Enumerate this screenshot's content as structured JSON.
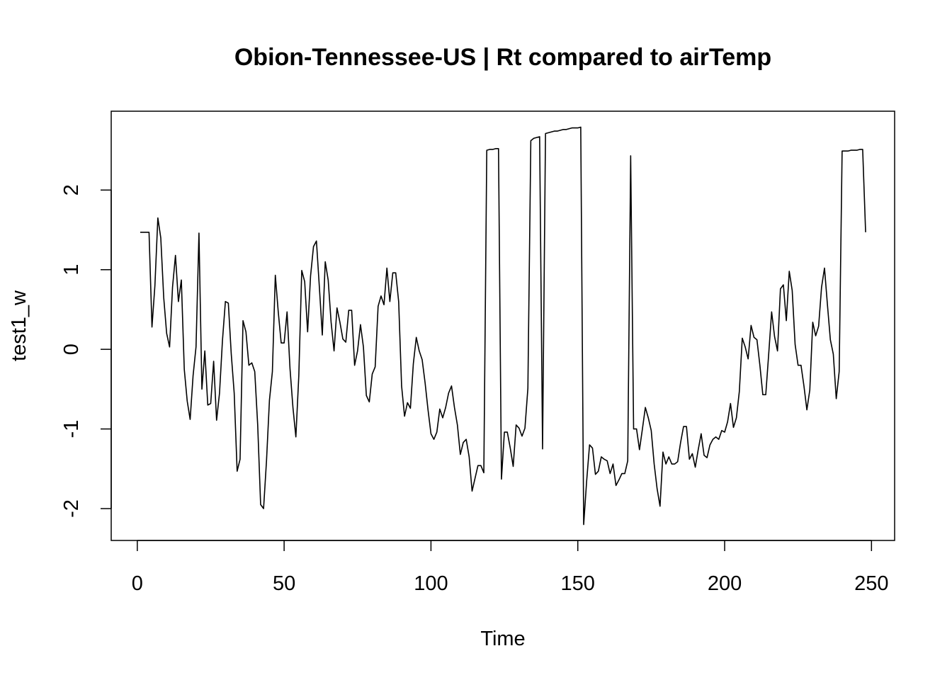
{
  "chart_data": {
    "type": "line",
    "title": "Obion-Tennessee-US | Rt compared to airTemp",
    "x_label": "Time",
    "y_label": "test1_w",
    "xlim": [
      -8.88,
      257.88
    ],
    "ylim": [
      -2.4,
      2.99
    ],
    "xticks": [
      0,
      50,
      100,
      150,
      200,
      250
    ],
    "yticks": [
      -2,
      -1,
      0,
      1,
      2
    ],
    "x": [
      1,
      2,
      3,
      4,
      5,
      6,
      7,
      8,
      9,
      10,
      11,
      12,
      13,
      14,
      15,
      16,
      17,
      18,
      19,
      20,
      21,
      22,
      23,
      24,
      25,
      26,
      27,
      28,
      29,
      30,
      31,
      32,
      33,
      34,
      35,
      36,
      37,
      38,
      39,
      40,
      41,
      42,
      43,
      44,
      45,
      46,
      47,
      48,
      49,
      50,
      51,
      52,
      53,
      54,
      55,
      56,
      57,
      58,
      59,
      60,
      61,
      62,
      63,
      64,
      65,
      66,
      67,
      68,
      69,
      70,
      71,
      72,
      73,
      74,
      75,
      76,
      77,
      78,
      79,
      80,
      81,
      82,
      83,
      84,
      85,
      86,
      87,
      88,
      89,
      90,
      91,
      92,
      93,
      94,
      95,
      96,
      97,
      98,
      99,
      100,
      101,
      102,
      103,
      104,
      105,
      106,
      107,
      108,
      109,
      110,
      111,
      112,
      113,
      114,
      115,
      116,
      117,
      118,
      119,
      120,
      121,
      122,
      123,
      124,
      125,
      126,
      127,
      128,
      129,
      130,
      131,
      132,
      133,
      134,
      135,
      136,
      137,
      138,
      139,
      140,
      141,
      142,
      143,
      144,
      145,
      146,
      147,
      148,
      149,
      150,
      151,
      152,
      153,
      154,
      155,
      156,
      157,
      158,
      159,
      160,
      161,
      162,
      163,
      164,
      165,
      166,
      167,
      168,
      169,
      170,
      171,
      172,
      173,
      174,
      175,
      176,
      177,
      178,
      179,
      180,
      181,
      182,
      183,
      184,
      185,
      186,
      187,
      188,
      189,
      190,
      191,
      192,
      193,
      194,
      195,
      196,
      197,
      198,
      199,
      200,
      201,
      202,
      203,
      204,
      205,
      206,
      207,
      208,
      209,
      210,
      211,
      212,
      213,
      214,
      215,
      216,
      217,
      218,
      219,
      220,
      221,
      222,
      223,
      224,
      225,
      226,
      227,
      228,
      229,
      230,
      231,
      232,
      233,
      234,
      235,
      236,
      237,
      238,
      239,
      240,
      241,
      242,
      243,
      244,
      245,
      246,
      247,
      248
    ],
    "series": [
      {
        "color": "#000000",
        "values": [
          1.47,
          1.47,
          1.47,
          1.47,
          0.28,
          0.8,
          1.65,
          1.4,
          0.65,
          0.2,
          0.03,
          0.78,
          1.18,
          0.6,
          0.87,
          -0.25,
          -0.65,
          -0.88,
          -0.33,
          0.03,
          1.46,
          -0.5,
          -0.02,
          -0.7,
          -0.68,
          -0.15,
          -0.89,
          -0.55,
          0.11,
          0.6,
          0.58,
          -0.06,
          -0.55,
          -1.53,
          -1.38,
          0.36,
          0.22,
          -0.2,
          -0.17,
          -0.28,
          -0.95,
          -1.95,
          -2.0,
          -1.4,
          -0.64,
          -0.28,
          0.93,
          0.47,
          0.08,
          0.08,
          0.47,
          -0.24,
          -0.73,
          -1.1,
          -0.33,
          0.99,
          0.85,
          0.22,
          0.92,
          1.29,
          1.36,
          0.78,
          0.18,
          1.1,
          0.87,
          0.34,
          -0.02,
          0.52,
          0.34,
          0.13,
          0.09,
          0.49,
          0.49,
          -0.2,
          -0.02,
          0.31,
          0.03,
          -0.58,
          -0.66,
          -0.31,
          -0.22,
          0.54,
          0.67,
          0.56,
          1.02,
          0.6,
          0.96,
          0.96,
          0.6,
          -0.46,
          -0.84,
          -0.67,
          -0.74,
          -0.18,
          0.15,
          -0.02,
          -0.13,
          -0.42,
          -0.76,
          -1.06,
          -1.13,
          -1.04,
          -0.75,
          -0.86,
          -0.73,
          -0.55,
          -0.46,
          -0.73,
          -0.95,
          -1.32,
          -1.17,
          -1.13,
          -1.35,
          -1.78,
          -1.62,
          -1.46,
          -1.46,
          -1.55,
          2.5,
          2.51,
          2.51,
          2.52,
          2.52,
          -1.63,
          -1.04,
          -1.04,
          -1.24,
          -1.47,
          -0.95,
          -0.99,
          -1.09,
          -0.99,
          -0.49,
          2.62,
          2.65,
          2.66,
          2.67,
          -1.25,
          2.71,
          2.72,
          2.73,
          2.74,
          2.74,
          2.75,
          2.76,
          2.76,
          2.77,
          2.78,
          2.78,
          2.78,
          2.79,
          -2.2,
          -1.66,
          -1.2,
          -1.24,
          -1.57,
          -1.53,
          -1.35,
          -1.38,
          -1.4,
          -1.56,
          -1.44,
          -1.71,
          -1.64,
          -1.56,
          -1.56,
          -1.4,
          2.43,
          -1.0,
          -1.0,
          -1.26,
          -1.0,
          -0.73,
          -0.86,
          -1.02,
          -1.44,
          -1.75,
          -1.97,
          -1.29,
          -1.44,
          -1.35,
          -1.44,
          -1.44,
          -1.41,
          -1.17,
          -0.97,
          -0.97,
          -1.38,
          -1.31,
          -1.48,
          -1.26,
          -1.06,
          -1.33,
          -1.36,
          -1.2,
          -1.13,
          -1.1,
          -1.13,
          -1.02,
          -1.04,
          -0.91,
          -0.68,
          -0.98,
          -0.86,
          -0.53,
          0.14,
          0.03,
          -0.12,
          0.3,
          0.15,
          0.12,
          -0.2,
          -0.57,
          -0.57,
          -0.06,
          0.47,
          0.16,
          -0.02,
          0.76,
          0.81,
          0.36,
          0.98,
          0.74,
          0.06,
          -0.2,
          -0.2,
          -0.46,
          -0.76,
          -0.51,
          0.34,
          0.17,
          0.29,
          0.78,
          1.02,
          0.56,
          0.12,
          -0.06,
          -0.62,
          -0.28,
          2.49,
          2.49,
          2.49,
          2.5,
          2.5,
          2.5,
          2.51,
          2.51,
          1.47
        ]
      }
    ]
  }
}
